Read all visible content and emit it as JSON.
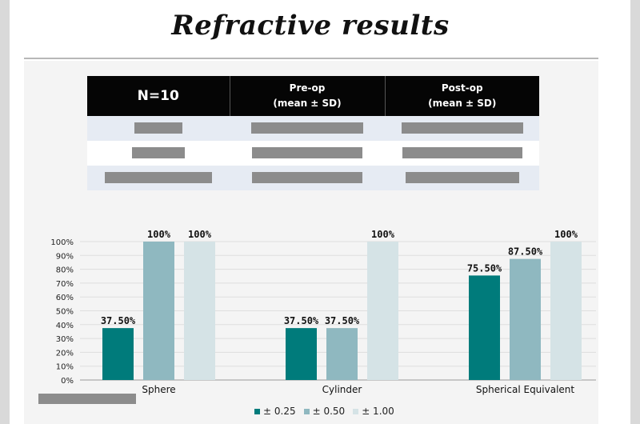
{
  "slide": {
    "title": "Refractive results"
  },
  "table": {
    "header": [
      "N=10",
      "Pre-op",
      "(mean ± SD)",
      "Post-op",
      "(mean ± SD)"
    ]
  },
  "chart_data": {
    "type": "bar",
    "categories": [
      "Sphere",
      "Cylinder",
      "Spherical Equivalent"
    ],
    "series": [
      {
        "name": "± 0.25",
        "values": [
          37.5,
          37.5,
          75.5
        ],
        "labels": [
          "37.50%",
          "37.50%",
          "75.50%"
        ],
        "color": "#007b7b"
      },
      {
        "name": "± 0.50",
        "values": [
          100,
          37.5,
          87.5
        ],
        "labels": [
          "100%",
          "37.50%",
          "87.50%"
        ],
        "color": "#8fb8c0"
      },
      {
        "name": "± 1.00",
        "values": [
          100,
          100,
          100
        ],
        "labels": [
          "100%",
          "100%",
          "100%"
        ],
        "color": "#d5e3e6"
      }
    ],
    "yticks": [
      "0%",
      "10%",
      "20%",
      "30%",
      "40%",
      "50%",
      "60%",
      "70%",
      "80%",
      "90%",
      "100%"
    ],
    "ylim": [
      0,
      100
    ],
    "grid": true,
    "legend": "bottom"
  }
}
